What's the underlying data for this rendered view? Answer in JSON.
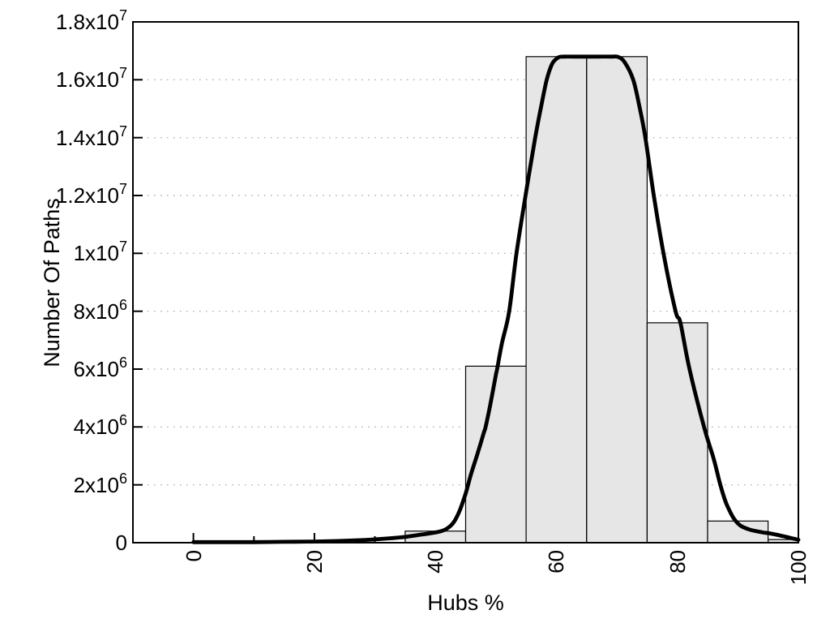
{
  "chart_data": {
    "type": "bar",
    "subtype": "histogram-with-smooth-curve",
    "title": "",
    "xlabel": "Hubs %",
    "ylabel": "Number Of Paths",
    "xlim": [
      -10,
      100
    ],
    "ylim": [
      0,
      18000000
    ],
    "grid": "y-dotted-horizontal-only",
    "legend": "none",
    "y_ticks": [
      {
        "value": 0,
        "label": "0"
      },
      {
        "value": 2000000,
        "label": "2x10^6"
      },
      {
        "value": 4000000,
        "label": "4x10^6"
      },
      {
        "value": 6000000,
        "label": "6x10^6"
      },
      {
        "value": 8000000,
        "label": "8x10^6"
      },
      {
        "value": 10000000,
        "label": "1x10^7"
      },
      {
        "value": 12000000,
        "label": "1.2x10^7"
      },
      {
        "value": 14000000,
        "label": "1.4x10^7"
      },
      {
        "value": 16000000,
        "label": "1.6x10^7"
      },
      {
        "value": 18000000,
        "label": "1.8x10^7"
      }
    ],
    "x_ticks": [
      {
        "value": 0,
        "label": "0"
      },
      {
        "value": 20,
        "label": "20"
      },
      {
        "value": 40,
        "label": "40"
      },
      {
        "value": 60,
        "label": "60"
      },
      {
        "value": 80,
        "label": "80"
      },
      {
        "value": 100,
        "label": "100"
      }
    ],
    "x_minor_ticks": [
      10,
      30,
      50,
      70,
      90
    ],
    "bars": [
      {
        "x0": 35,
        "x1": 45,
        "y": 400000
      },
      {
        "x0": 45,
        "x1": 55,
        "y": 6100000
      },
      {
        "x0": 55,
        "x1": 65,
        "y": 16800000
      },
      {
        "x0": 65,
        "x1": 75,
        "y": 16800000
      },
      {
        "x0": 75,
        "x1": 85,
        "y": 7600000
      },
      {
        "x0": 85,
        "x1": 95,
        "y": 750000
      },
      {
        "x0": 95,
        "x1": 100,
        "y": 110000
      }
    ],
    "curve": {
      "name": "smoothed-frequency-curve",
      "points": [
        [
          0,
          20000
        ],
        [
          5,
          20000
        ],
        [
          10,
          20000
        ],
        [
          15,
          30000
        ],
        [
          20,
          40000
        ],
        [
          24,
          60000
        ],
        [
          28,
          90000
        ],
        [
          31,
          130000
        ],
        [
          33,
          160000
        ],
        [
          35,
          200000
        ],
        [
          37,
          260000
        ],
        [
          39,
          320000
        ],
        [
          41,
          400000
        ],
        [
          42,
          500000
        ],
        [
          43,
          700000
        ],
        [
          44,
          1100000
        ],
        [
          45,
          1700000
        ],
        [
          45.4,
          2000000
        ],
        [
          46,
          2450000
        ],
        [
          47,
          3100000
        ],
        [
          48,
          3800000
        ],
        [
          48.3,
          4000000
        ],
        [
          49,
          4700000
        ],
        [
          50,
          5800000
        ],
        [
          50.2,
          6000000
        ],
        [
          51,
          6900000
        ],
        [
          52.2,
          8000000
        ],
        [
          53.4,
          10000000
        ],
        [
          54.9,
          12000000
        ],
        [
          56.5,
          14000000
        ],
        [
          57.5,
          15100000
        ],
        [
          58.4,
          16000000
        ],
        [
          59.3,
          16550000
        ],
        [
          60.3,
          16770000
        ],
        [
          61.2,
          16800000
        ],
        [
          63,
          16800000
        ],
        [
          65,
          16800000
        ],
        [
          67,
          16800000
        ],
        [
          69,
          16800000
        ],
        [
          70.2,
          16790000
        ],
        [
          71.3,
          16600000
        ],
        [
          72.7,
          16000000
        ],
        [
          73.7,
          15100000
        ],
        [
          74.7,
          14000000
        ],
        [
          76.1,
          12000000
        ],
        [
          77.7,
          10000000
        ],
        [
          79.7,
          8000000
        ],
        [
          80.5,
          7600000
        ],
        [
          82,
          6000000
        ],
        [
          84.4,
          4000000
        ],
        [
          86,
          2900000
        ],
        [
          87.1,
          2000000
        ],
        [
          88,
          1400000
        ],
        [
          89,
          950000
        ],
        [
          89.6,
          760000
        ],
        [
          90.5,
          580000
        ],
        [
          92,
          450000
        ],
        [
          94,
          360000
        ],
        [
          95,
          330000
        ],
        [
          96.5,
          270000
        ],
        [
          98,
          200000
        ],
        [
          99,
          150000
        ],
        [
          100,
          100000
        ]
      ]
    },
    "style": {
      "bar_fill": "#e6e6e6",
      "bar_border": "#000000",
      "curve_color": "#000000",
      "grid_color": "#b3b3b3",
      "axis_color": "#000000",
      "background": "#ffffff"
    }
  }
}
